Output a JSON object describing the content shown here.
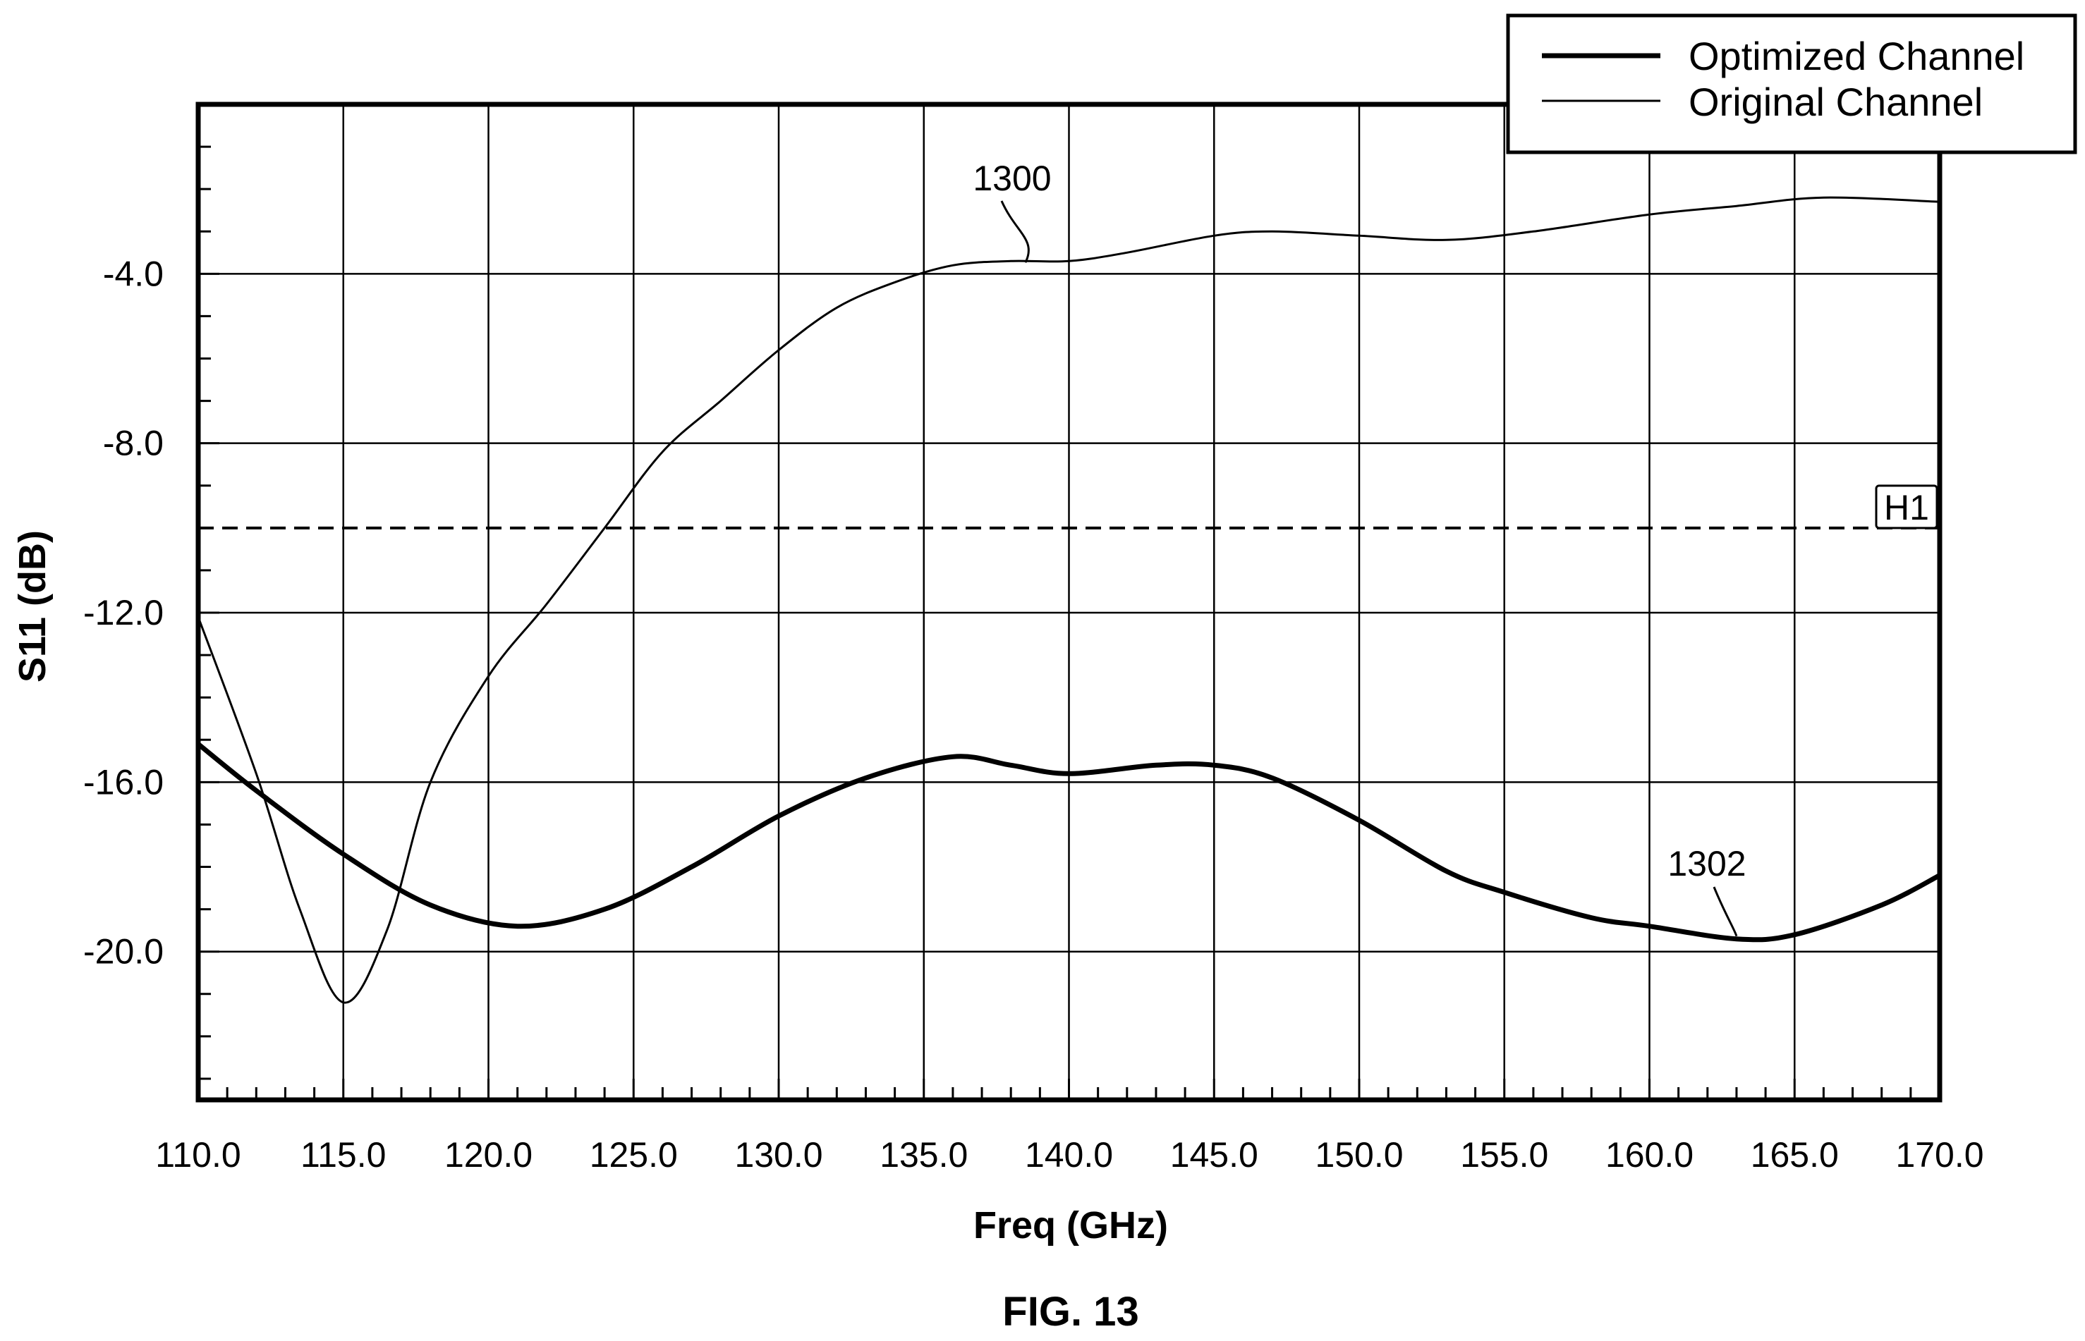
{
  "chart_data": {
    "type": "line",
    "xlabel": "Freq (GHz)",
    "ylabel": "S11 (dB)",
    "xlim": [
      110.0,
      170.0
    ],
    "ylim": [
      -23.5,
      0
    ],
    "x_ticks": [
      "110.0",
      "115.0",
      "120.0",
      "125.0",
      "130.0",
      "135.0",
      "140.0",
      "145.0",
      "150.0",
      "155.0",
      "160.0",
      "165.0",
      "170.0"
    ],
    "y_ticks": [
      "-4.0",
      "-8.0",
      "-12.0",
      "-16.0",
      "-20.0"
    ],
    "x_tick_values": [
      110,
      115,
      120,
      125,
      130,
      135,
      140,
      145,
      150,
      155,
      160,
      165,
      170
    ],
    "y_tick_values": [
      -4,
      -8,
      -12,
      -16,
      -20
    ],
    "grid": true,
    "legend_position": "top-right",
    "series": [
      {
        "name": "Optimized Channel",
        "color": "#000000",
        "x": [
          110,
          112,
          115,
          118,
          121,
          124,
          127,
          130,
          133,
          136,
          138,
          140,
          143,
          145,
          147,
          150,
          153,
          155,
          158,
          160,
          163,
          165,
          168,
          170
        ],
        "y": [
          -15.1,
          -16.2,
          -17.7,
          -18.9,
          -19.4,
          -19.0,
          -18.0,
          -16.8,
          -15.9,
          -15.4,
          -15.6,
          -15.8,
          -15.6,
          -15.6,
          -15.9,
          -16.9,
          -18.1,
          -18.6,
          -19.2,
          -19.4,
          -19.7,
          -19.6,
          -18.9,
          -18.2
        ]
      },
      {
        "name": "Original Channel",
        "color": "#000000",
        "x": [
          110,
          112,
          113.5,
          115,
          116.5,
          118,
          120,
          122,
          124,
          126,
          128,
          130,
          132,
          134,
          136,
          138,
          140,
          142,
          145,
          147,
          150,
          153,
          156,
          160,
          163,
          166,
          170
        ],
        "y": [
          -12.1,
          -15.8,
          -19.0,
          -21.2,
          -19.5,
          -16.0,
          -13.5,
          -11.8,
          -10.0,
          -8.2,
          -7.0,
          -5.8,
          -4.8,
          -4.2,
          -3.8,
          -3.7,
          -3.7,
          -3.5,
          -3.1,
          -3.0,
          -3.1,
          -3.2,
          -3.0,
          -2.6,
          -2.4,
          -2.2,
          -2.3
        ]
      }
    ],
    "reference_lines": [
      {
        "label": "H1",
        "y": -10.0,
        "style": "dashed"
      }
    ],
    "annotations": [
      {
        "text": "1300",
        "x": 138.5,
        "y": -3.7
      },
      {
        "text": "1302",
        "x": 163,
        "y": -19.7
      }
    ],
    "caption": "FIG. 13"
  }
}
